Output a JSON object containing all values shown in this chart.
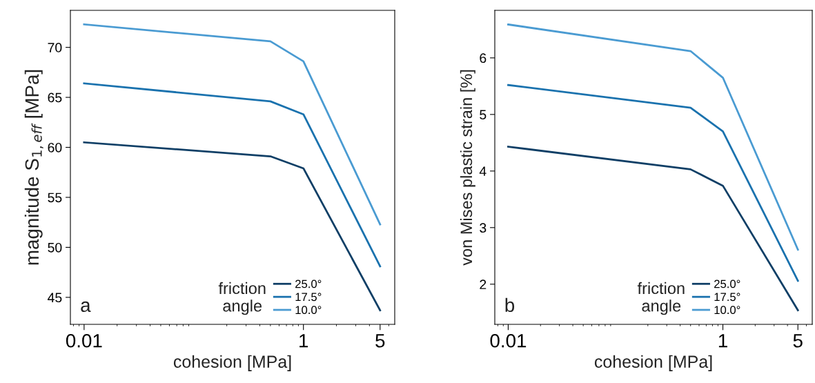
{
  "chart_data": [
    {
      "type": "line",
      "xlabel": "cohesion [MPa]",
      "ylabel": "magnitude S$_{1,eff}$ [MPa]",
      "legend_title": "friction angle",
      "annotations": [
        "a"
      ],
      "x": [
        0.01,
        0.5,
        1,
        5
      ],
      "log": "x",
      "xlim": [
        0.0075,
        6.8
      ],
      "xticks": [
        0.01,
        1,
        5
      ],
      "ylim": [
        42.3,
        73.7
      ],
      "yticks": [
        45,
        50,
        55,
        60,
        65,
        70
      ],
      "grid": false,
      "legend": "bottom right",
      "series": [
        {
          "name": "25.0°",
          "color": "#0f3f66",
          "values": [
            60.5,
            59.1,
            57.9,
            43.7
          ]
        },
        {
          "name": "17.5°",
          "color": "#1a72ae",
          "values": [
            66.4,
            64.6,
            63.3,
            48.1
          ]
        },
        {
          "name": "10.0°",
          "color": "#4a9bd2",
          "values": [
            72.3,
            70.6,
            68.6,
            52.3
          ]
        }
      ]
    },
    {
      "type": "line",
      "xlabel": "cohesion [MPa]",
      "ylabel": "von Mises plastic strain [%]",
      "legend_title": "friction angle",
      "annotations": [
        "b"
      ],
      "x": [
        0.01,
        0.5,
        1,
        5
      ],
      "log": "x",
      "xlim": [
        0.0075,
        6.8
      ],
      "xticks": [
        0.01,
        1,
        5
      ],
      "ylim": [
        1.29,
        6.84
      ],
      "yticks": [
        2,
        3,
        4,
        5,
        6
      ],
      "grid": false,
      "legend": "bottom right",
      "series": [
        {
          "name": "25.0°",
          "color": "#0f3f66",
          "values": [
            4.43,
            4.03,
            3.74,
            1.54
          ]
        },
        {
          "name": "17.5°",
          "color": "#1a72ae",
          "values": [
            5.52,
            5.12,
            4.7,
            2.06
          ]
        },
        {
          "name": "10.0°",
          "color": "#4a9bd2",
          "values": [
            6.59,
            6.12,
            5.65,
            2.61
          ]
        }
      ]
    }
  ]
}
